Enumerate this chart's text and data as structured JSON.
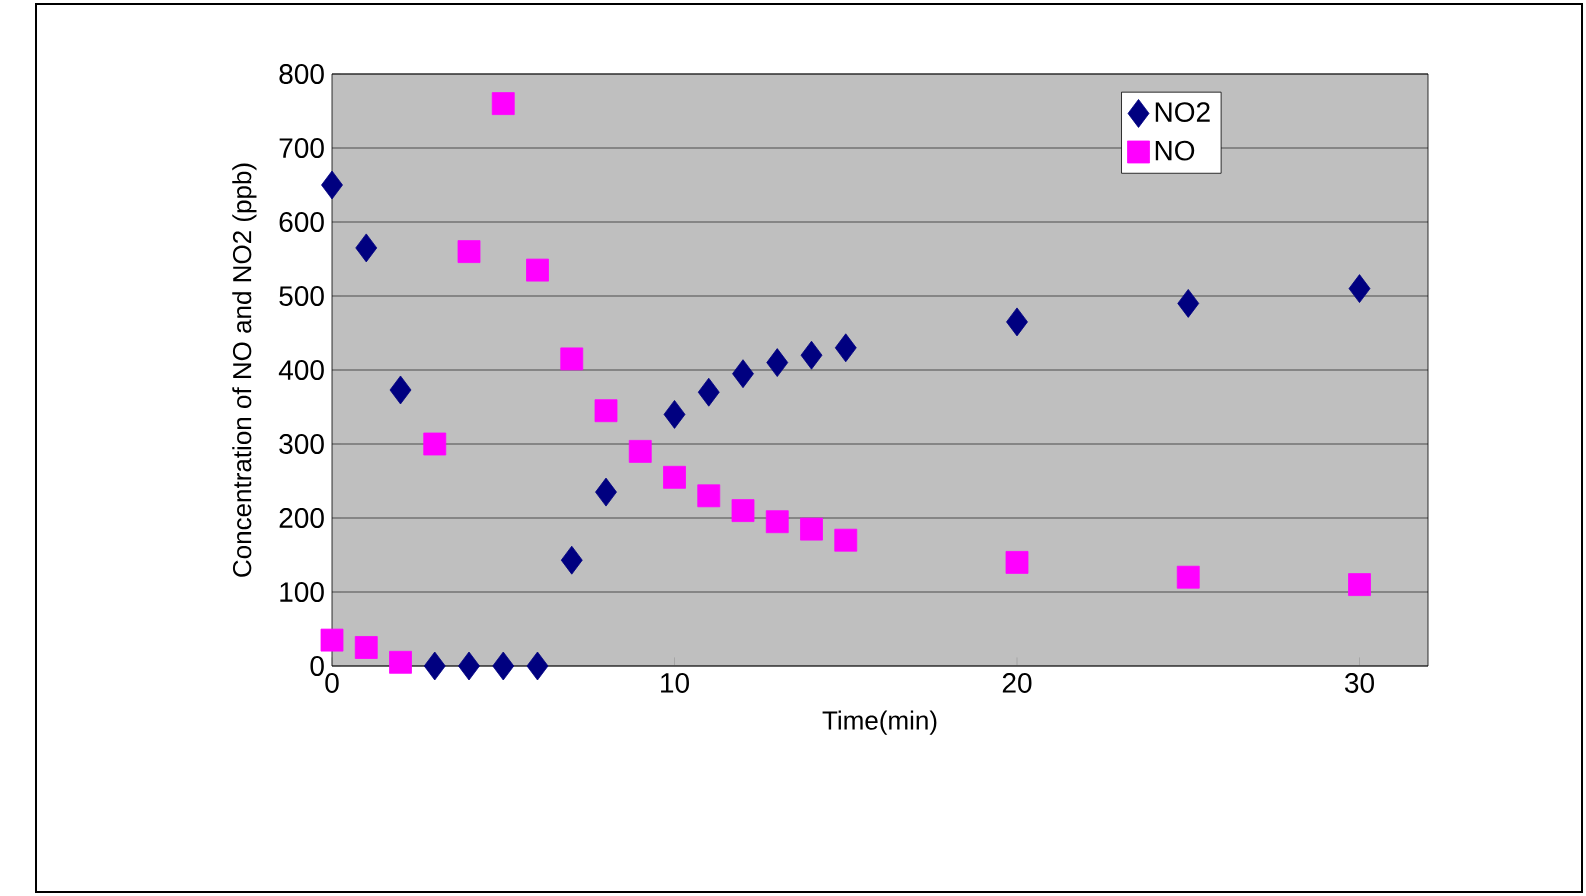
{
  "chart_data": {
    "type": "scatter",
    "xlabel": "Time(min)",
    "ylabel": "Concentration of NO and NO2 (ppb)",
    "xlim": [
      0,
      32
    ],
    "xticks": [
      0,
      10,
      20,
      30
    ],
    "ylim": [
      0,
      800
    ],
    "yticks": [
      0,
      100,
      200,
      300,
      400,
      500,
      600,
      700,
      800
    ],
    "grid": "y",
    "legend": "top right",
    "series": [
      {
        "name": "NO2",
        "color": "#000080",
        "marker": "diamond",
        "x": [
          0,
          1,
          2,
          3,
          4,
          5,
          6,
          7,
          8,
          9,
          10,
          11,
          12,
          13,
          14,
          15,
          20,
          25,
          30
        ],
        "values": [
          650,
          565,
          373,
          0,
          0,
          0,
          0,
          143,
          235,
          null,
          340,
          370,
          395,
          410,
          420,
          430,
          465,
          490,
          510
        ]
      },
      {
        "name": "NO",
        "color": "#ff00ff",
        "marker": "square",
        "x": [
          0,
          1,
          2,
          3,
          4,
          5,
          6,
          7,
          8,
          9,
          10,
          11,
          12,
          13,
          14,
          15,
          20,
          25,
          30
        ],
        "values": [
          35,
          25,
          5,
          300,
          560,
          760,
          535,
          415,
          345,
          290,
          255,
          230,
          210,
          195,
          185,
          170,
          140,
          120,
          110
        ]
      }
    ]
  }
}
